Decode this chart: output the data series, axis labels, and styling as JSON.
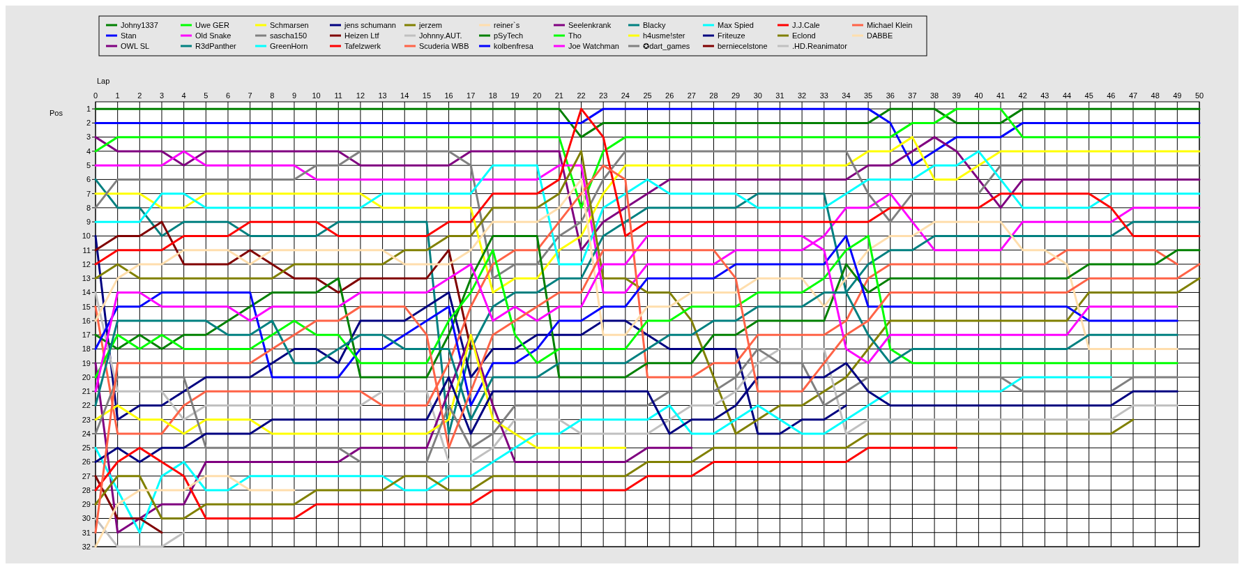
{
  "chart_data": {
    "type": "line",
    "xlabel": "Lap",
    "ylabel": "Pos",
    "x": [
      0,
      1,
      2,
      3,
      4,
      5,
      6,
      7,
      8,
      9,
      10,
      11,
      12,
      13,
      14,
      15,
      16,
      17,
      18,
      19,
      20,
      21,
      22,
      23,
      24,
      25,
      26,
      27,
      28,
      29,
      30,
      31,
      32,
      33,
      34,
      35,
      36,
      37,
      38,
      39,
      40,
      41,
      42,
      43,
      44,
      45,
      46,
      47,
      48,
      49,
      50
    ],
    "xlim": [
      0,
      50
    ],
    "xticks": [
      0,
      1,
      2,
      3,
      4,
      5,
      6,
      7,
      8,
      9,
      10,
      11,
      12,
      13,
      14,
      15,
      16,
      17,
      18,
      19,
      20,
      21,
      22,
      23,
      24,
      25,
      26,
      27,
      28,
      29,
      30,
      31,
      32,
      33,
      34,
      35,
      36,
      37,
      38,
      39,
      40,
      41,
      42,
      43,
      44,
      45,
      46,
      47,
      48,
      49,
      50
    ],
    "ylim": [
      32,
      0.5
    ],
    "yticks": [
      1,
      2,
      3,
      4,
      5,
      6,
      7,
      8,
      9,
      10,
      11,
      12,
      13,
      14,
      15,
      16,
      17,
      18,
      19,
      20,
      21,
      22,
      23,
      24,
      25,
      26,
      27,
      28,
      29,
      30,
      31,
      32
    ],
    "grid": true,
    "legend": "top",
    "series": [
      {
        "name": "Johny1337",
        "color": "#008000",
        "values": [
          1,
          1,
          1,
          1,
          1,
          1,
          1,
          1,
          1,
          1,
          1,
          1,
          1,
          1,
          1,
          1,
          1,
          1,
          1,
          1,
          1,
          1,
          3,
          2,
          2,
          2,
          2,
          2,
          2,
          2,
          2,
          2,
          2,
          2,
          2,
          2,
          1,
          1,
          1,
          2,
          2,
          2,
          1,
          1,
          1,
          1,
          1,
          1,
          1,
          1,
          1
        ]
      },
      {
        "name": "Stan",
        "color": "#0000ff",
        "values": [
          2,
          2,
          2,
          2,
          2,
          2,
          2,
          2,
          2,
          2,
          2,
          2,
          2,
          2,
          2,
          2,
          2,
          2,
          2,
          2,
          2,
          2,
          2,
          1,
          1,
          1,
          1,
          1,
          1,
          1,
          1,
          1,
          1,
          1,
          1,
          1,
          2,
          5,
          4,
          3,
          3,
          3,
          2,
          2,
          2,
          2,
          2,
          2,
          2,
          2,
          2
        ]
      },
      {
        "name": "OWL SL",
        "color": "#800080",
        "values": [
          3,
          4,
          4,
          4,
          5,
          4,
          4,
          4,
          4,
          4,
          4,
          4,
          5,
          5,
          5,
          5,
          5,
          4,
          4,
          4,
          4,
          4,
          11,
          9,
          8,
          7,
          6,
          6,
          6,
          6,
          6,
          6,
          6,
          6,
          6,
          5,
          5,
          4,
          3,
          4,
          6,
          8,
          6,
          6,
          6,
          6,
          6,
          6,
          6,
          6,
          6
        ]
      },
      {
        "name": "Uwe GER",
        "color": "#00ff00",
        "values": [
          4,
          3,
          3,
          3,
          3,
          3,
          3,
          3,
          3,
          3,
          3,
          3,
          3,
          3,
          3,
          3,
          3,
          3,
          3,
          3,
          3,
          3,
          8,
          4,
          3,
          3,
          3,
          3,
          3,
          3,
          3,
          3,
          3,
          3,
          3,
          3,
          3,
          2,
          2,
          1,
          1,
          1,
          3,
          3,
          3,
          3,
          3,
          3,
          3,
          3,
          3
        ]
      },
      {
        "name": "Old Snake",
        "color": "#ff00ff",
        "values": [
          5,
          5,
          5,
          5,
          4,
          5,
          5,
          5,
          5,
          5,
          6,
          6,
          6,
          6,
          6,
          6,
          6,
          6,
          6,
          6,
          6,
          5,
          5,
          14,
          14,
          12,
          12,
          12,
          12,
          11,
          11,
          11,
          11,
          10,
          8,
          8,
          7,
          9,
          11,
          11,
          11,
          11,
          9,
          9,
          9,
          9,
          9,
          8,
          8,
          8,
          8
        ]
      },
      {
        "name": "R3dPanther",
        "color": "#008080",
        "values": [
          6,
          8,
          8,
          10,
          9,
          9,
          9,
          10,
          10,
          10,
          10,
          9,
          9,
          9,
          9,
          9,
          24,
          18,
          15,
          14,
          14,
          13,
          13,
          10,
          9,
          8,
          8,
          8,
          8,
          8,
          7,
          7,
          7,
          7,
          14,
          12,
          11,
          11,
          10,
          10,
          10,
          10,
          10,
          10,
          10,
          10,
          10,
          9,
          9,
          9,
          9
        ]
      },
      {
        "name": "Schmarsen",
        "color": "#ffff00",
        "values": [
          7,
          7,
          7,
          8,
          8,
          7,
          7,
          7,
          7,
          7,
          7,
          7,
          7,
          8,
          8,
          8,
          8,
          8,
          14,
          13,
          13,
          11,
          10,
          7,
          5,
          5,
          5,
          5,
          5,
          5,
          5,
          5,
          5,
          5,
          5,
          4,
          4,
          3,
          6,
          6,
          5,
          4,
          4,
          4,
          4,
          4,
          4,
          4,
          4,
          4,
          4
        ]
      },
      {
        "name": "sascha150",
        "color": "#808080",
        "values": [
          8,
          6,
          6,
          6,
          6,
          6,
          6,
          6,
          6,
          6,
          5,
          5,
          4,
          4,
          4,
          4,
          4,
          5,
          13,
          12,
          12,
          10,
          9,
          6,
          4,
          4,
          4,
          4,
          4,
          4,
          4,
          4,
          4,
          4,
          4,
          7,
          9,
          7,
          7,
          7,
          7,
          5,
          5,
          5,
          5,
          5,
          5,
          5,
          5,
          5,
          5
        ]
      },
      {
        "name": "GreenHorn",
        "color": "#00ffff",
        "values": [
          9,
          9,
          9,
          7,
          7,
          8,
          8,
          8,
          8,
          8,
          8,
          8,
          8,
          7,
          7,
          7,
          7,
          7,
          5,
          5,
          5,
          12,
          12,
          8,
          7,
          6,
          7,
          7,
          7,
          7,
          8,
          8,
          8,
          8,
          7,
          6,
          6,
          6,
          5,
          5,
          4,
          6,
          8,
          8,
          8,
          8,
          7,
          7,
          7,
          7,
          7
        ]
      },
      {
        "name": "jens  schumann",
        "color": "#000080",
        "values": [
          10,
          23,
          22,
          22,
          21,
          20,
          20,
          20,
          19,
          18,
          18,
          19,
          16,
          16,
          16,
          15,
          14,
          20,
          18,
          18,
          17,
          17,
          17,
          16,
          16,
          17,
          18,
          18,
          18,
          18,
          24,
          24,
          23,
          23,
          22,
          null,
          null,
          null,
          null,
          null,
          null,
          null,
          null,
          null,
          null,
          null,
          null,
          null,
          null,
          null,
          null
        ]
      },
      {
        "name": "Heizen Ltf",
        "color": "#800000",
        "values": [
          11,
          10,
          10,
          9,
          12,
          12,
          12,
          11,
          12,
          13,
          13,
          14,
          13,
          13,
          13,
          13,
          11,
          18,
          null,
          null,
          null,
          null,
          null,
          null,
          null,
          null,
          null,
          null,
          null,
          null,
          null,
          null,
          null,
          null,
          null,
          null,
          null,
          null,
          null,
          null,
          null,
          null,
          null,
          null,
          null,
          null,
          null,
          null,
          null,
          null,
          null
        ]
      },
      {
        "name": "Tafelzwerk",
        "color": "#ff0000",
        "values": [
          12,
          11,
          11,
          11,
          10,
          10,
          10,
          9,
          9,
          9,
          9,
          10,
          10,
          10,
          10,
          10,
          9,
          9,
          7,
          7,
          7,
          6,
          1,
          3,
          10,
          9,
          9,
          9,
          9,
          9,
          9,
          9,
          9,
          9,
          9,
          9,
          8,
          8,
          8,
          8,
          8,
          7,
          7,
          7,
          7,
          7,
          8,
          10,
          10,
          10,
          10
        ]
      },
      {
        "name": "jerzem",
        "color": "#808000",
        "values": [
          13,
          12,
          13,
          13,
          13,
          13,
          13,
          13,
          13,
          12,
          12,
          12,
          12,
          12,
          11,
          11,
          10,
          10,
          8,
          8,
          8,
          7,
          4,
          13,
          13,
          14,
          14,
          16,
          20,
          24,
          23,
          22,
          22,
          21,
          20,
          18,
          16,
          16,
          16,
          16,
          16,
          16,
          16,
          16,
          16,
          14,
          14,
          14,
          14,
          14,
          13
        ]
      },
      {
        "name": "Johnny.AUT.",
        "color": "#c0c0c0",
        "values": [
          14,
          21,
          21,
          21,
          23,
          22,
          22,
          22,
          22,
          22,
          22,
          22,
          22,
          21,
          21,
          21,
          26,
          26,
          25,
          23,
          23,
          23,
          24,
          24,
          24,
          24,
          23,
          22,
          22,
          21,
          19,
          18,
          18,
          18,
          24,
          23,
          23,
          23,
          23,
          23,
          23,
          23,
          23,
          23,
          23,
          23,
          23,
          22,
          22,
          22,
          null
        ]
      },
      {
        "name": "Scuderia WBB",
        "color": "#ff6347",
        "values": [
          15,
          24,
          24,
          24,
          22,
          21,
          21,
          21,
          21,
          21,
          21,
          21,
          21,
          22,
          22,
          22,
          19,
          15,
          12,
          11,
          11,
          9,
          7,
          5,
          6,
          20,
          20,
          20,
          19,
          19,
          17,
          17,
          17,
          17,
          16,
          13,
          12,
          12,
          12,
          12,
          12,
          12,
          12,
          12,
          11,
          11,
          11,
          11,
          11,
          12,
          null
        ]
      },
      {
        "name": "reiner`s",
        "color": "#ffdead",
        "values": [
          16,
          13,
          12,
          12,
          11,
          11,
          11,
          12,
          11,
          11,
          11,
          11,
          11,
          11,
          12,
          12,
          12,
          11,
          9,
          9,
          9,
          8,
          6,
          17,
          17,
          15,
          15,
          14,
          14,
          14,
          13,
          13,
          13,
          15,
          13,
          11,
          10,
          10,
          9,
          9,
          9,
          9,
          11,
          11,
          12,
          18,
          18,
          18,
          18,
          18,
          null
        ]
      },
      {
        "name": "pSyTech",
        "color": "#008000",
        "values": [
          17,
          18,
          17,
          18,
          17,
          17,
          16,
          15,
          14,
          14,
          14,
          13,
          20,
          20,
          20,
          20,
          17,
          13,
          10,
          10,
          10,
          20,
          20,
          20,
          20,
          19,
          19,
          19,
          17,
          17,
          16,
          16,
          16,
          16,
          12,
          14,
          13,
          13,
          13,
          13,
          13,
          13,
          13,
          13,
          13,
          12,
          12,
          12,
          12,
          11,
          11
        ]
      },
      {
        "name": "kolbenfresa",
        "color": "#0000ff",
        "values": [
          18,
          15,
          15,
          14,
          14,
          14,
          14,
          14,
          20,
          20,
          20,
          20,
          18,
          18,
          17,
          16,
          15,
          22,
          19,
          19,
          18,
          16,
          16,
          15,
          15,
          13,
          13,
          13,
          13,
          12,
          12,
          12,
          12,
          12,
          10,
          15,
          15,
          15,
          15,
          15,
          15,
          15,
          15,
          15,
          15,
          16,
          16,
          16,
          16,
          16,
          null
        ]
      },
      {
        "name": "Seelenkrank",
        "color": "#800080",
        "values": [
          19,
          31,
          30,
          29,
          29,
          26,
          26,
          26,
          26,
          26,
          26,
          26,
          25,
          25,
          25,
          25,
          21,
          17,
          22,
          26,
          26,
          26,
          26,
          26,
          26,
          25,
          25,
          25,
          null,
          null,
          null,
          null,
          null,
          null,
          null,
          null,
          null,
          null,
          null,
          null,
          null,
          null,
          null,
          null,
          null,
          null,
          null,
          null,
          null,
          null,
          null
        ]
      },
      {
        "name": "Tho",
        "color": "#00ff00",
        "values": [
          20,
          17,
          18,
          17,
          18,
          18,
          18,
          18,
          17,
          16,
          17,
          17,
          19,
          19,
          19,
          19,
          16,
          14,
          11,
          17,
          19,
          18,
          18,
          18,
          18,
          16,
          16,
          15,
          15,
          15,
          14,
          14,
          14,
          13,
          11,
          10,
          18,
          19,
          19,
          19,
          19,
          19,
          19,
          19,
          19,
          19,
          19,
          19,
          19,
          19,
          null
        ]
      },
      {
        "name": "Joe Watchman",
        "color": "#ff00ff",
        "values": [
          21,
          14,
          14,
          15,
          15,
          15,
          15,
          16,
          15,
          15,
          15,
          15,
          14,
          14,
          14,
          14,
          13,
          12,
          16,
          15,
          16,
          15,
          15,
          12,
          12,
          10,
          10,
          10,
          10,
          10,
          10,
          10,
          10,
          11,
          18,
          19,
          17,
          17,
          17,
          17,
          17,
          17,
          17,
          17,
          17,
          15,
          15,
          15,
          15,
          15,
          null
        ]
      },
      {
        "name": "Blacky",
        "color": "#008080",
        "values": [
          22,
          16,
          16,
          16,
          16,
          16,
          17,
          17,
          16,
          19,
          19,
          18,
          17,
          17,
          18,
          18,
          18,
          23,
          20,
          20,
          20,
          19,
          19,
          19,
          19,
          18,
          17,
          17,
          16,
          16,
          15,
          15,
          15,
          14,
          14,
          17,
          19,
          18,
          18,
          18,
          18,
          18,
          18,
          18,
          18,
          17,
          17,
          17,
          17,
          17,
          null
        ]
      },
      {
        "name": "h4usme!ster",
        "color": "#ffff00",
        "values": [
          23,
          22,
          23,
          23,
          24,
          23,
          23,
          23,
          24,
          24,
          24,
          24,
          24,
          24,
          24,
          24,
          23,
          17,
          23,
          24,
          25,
          25,
          25,
          25,
          25,
          null,
          null,
          null,
          null,
          null,
          null,
          null,
          null,
          null,
          null,
          null,
          null,
          null,
          null,
          null,
          null,
          null,
          null,
          null,
          null,
          null,
          null,
          null,
          null,
          null,
          null
        ]
      },
      {
        "name": "✪dart_games",
        "color": "#808080",
        "values": [
          24,
          20,
          20,
          20,
          20,
          25,
          25,
          25,
          25,
          25,
          25,
          25,
          26,
          26,
          26,
          26,
          22,
          25,
          24,
          22,
          22,
          22,
          22,
          22,
          22,
          22,
          21,
          21,
          21,
          20,
          18,
          19,
          19,
          22,
          21,
          20,
          20,
          20,
          20,
          20,
          20,
          20,
          21,
          21,
          21,
          21,
          21,
          20,
          20,
          20,
          null
        ]
      },
      {
        "name": "Max Spied",
        "color": "#00ffff",
        "values": [
          25,
          28,
          31,
          27,
          26,
          28,
          28,
          27,
          27,
          27,
          27,
          27,
          27,
          27,
          28,
          28,
          27,
          27,
          26,
          25,
          24,
          24,
          23,
          23,
          23,
          23,
          22,
          24,
          24,
          23,
          22,
          23,
          24,
          24,
          23,
          22,
          21,
          21,
          21,
          21,
          21,
          21,
          20,
          20,
          20,
          20,
          20,
          null,
          null,
          null,
          null
        ]
      },
      {
        "name": "Friteuze",
        "color": "#000080",
        "values": [
          26,
          25,
          26,
          25,
          25,
          24,
          24,
          24,
          23,
          23,
          23,
          23,
          23,
          23,
          23,
          23,
          20,
          24,
          21,
          21,
          21,
          21,
          21,
          21,
          21,
          21,
          24,
          23,
          23,
          22,
          20,
          20,
          20,
          20,
          19,
          21,
          22,
          22,
          22,
          22,
          22,
          22,
          22,
          22,
          22,
          22,
          22,
          21,
          21,
          21,
          null
        ]
      },
      {
        "name": "berniecelstone",
        "color": "#800000",
        "values": [
          27,
          30,
          30,
          31,
          null,
          null,
          null,
          null,
          null,
          null,
          null,
          null,
          null,
          null,
          null,
          null,
          null,
          null,
          null,
          null,
          null,
          null,
          null,
          null,
          null,
          null,
          null,
          null,
          null,
          null,
          null,
          null,
          null,
          null,
          null,
          null,
          null,
          null,
          null,
          null,
          null,
          null,
          null,
          null,
          null,
          null,
          null,
          null,
          null,
          null,
          null
        ]
      },
      {
        "name": "J.J.Cale",
        "color": "#ff0000",
        "values": [
          28,
          26,
          25,
          26,
          27,
          30,
          30,
          30,
          30,
          30,
          29,
          29,
          29,
          29,
          29,
          29,
          29,
          29,
          28,
          28,
          28,
          28,
          28,
          28,
          28,
          27,
          27,
          27,
          26,
          26,
          26,
          26,
          26,
          26,
          26,
          25,
          25,
          25,
          25,
          25,
          null,
          null,
          null,
          null,
          null,
          null,
          null,
          null,
          null,
          null,
          null
        ]
      },
      {
        "name": "Eclond",
        "color": "#808000",
        "values": [
          29,
          27,
          27,
          30,
          30,
          29,
          29,
          29,
          29,
          29,
          28,
          28,
          28,
          28,
          27,
          27,
          28,
          28,
          27,
          27,
          27,
          27,
          27,
          27,
          27,
          26,
          26,
          26,
          25,
          25,
          25,
          25,
          25,
          25,
          25,
          24,
          24,
          24,
          24,
          24,
          24,
          24,
          24,
          24,
          24,
          24,
          24,
          23,
          null,
          null,
          null
        ]
      },
      {
        "name": ".HD.Reanimator",
        "color": "#c0c0c0",
        "values": [
          30,
          32,
          32,
          32,
          31,
          null,
          null,
          null,
          null,
          null,
          null,
          null,
          null,
          null,
          null,
          null,
          null,
          null,
          null,
          null,
          null,
          null,
          null,
          null,
          null,
          null,
          null,
          null,
          null,
          null,
          null,
          null,
          null,
          null,
          null,
          null,
          null,
          null,
          null,
          null,
          null,
          null,
          null,
          null,
          null,
          null,
          null,
          null,
          null,
          null,
          null
        ]
      },
      {
        "name": "Michael Klein",
        "color": "#ff6347",
        "values": [
          31,
          19,
          19,
          19,
          19,
          19,
          19,
          19,
          18,
          17,
          16,
          16,
          15,
          15,
          15,
          17,
          25,
          21,
          17,
          16,
          15,
          14,
          14,
          11,
          11,
          11,
          11,
          11,
          11,
          13,
          21,
          21,
          21,
          19,
          17,
          16,
          14,
          14,
          14,
          14,
          14,
          14,
          14,
          14,
          14,
          13,
          13,
          13,
          13,
          13,
          12
        ]
      },
      {
        "name": "DABBE",
        "color": "#ffdead",
        "values": [
          32,
          29,
          28,
          28,
          28,
          27,
          27,
          28,
          28,
          28,
          null,
          null,
          null,
          null,
          null,
          null,
          null,
          null,
          null,
          null,
          null,
          null,
          null,
          null,
          null,
          null,
          null,
          null,
          null,
          null,
          null,
          null,
          null,
          null,
          null,
          null,
          null,
          null,
          null,
          null,
          null,
          null,
          null,
          null,
          null,
          null,
          null,
          null,
          null,
          null,
          null
        ]
      }
    ]
  }
}
